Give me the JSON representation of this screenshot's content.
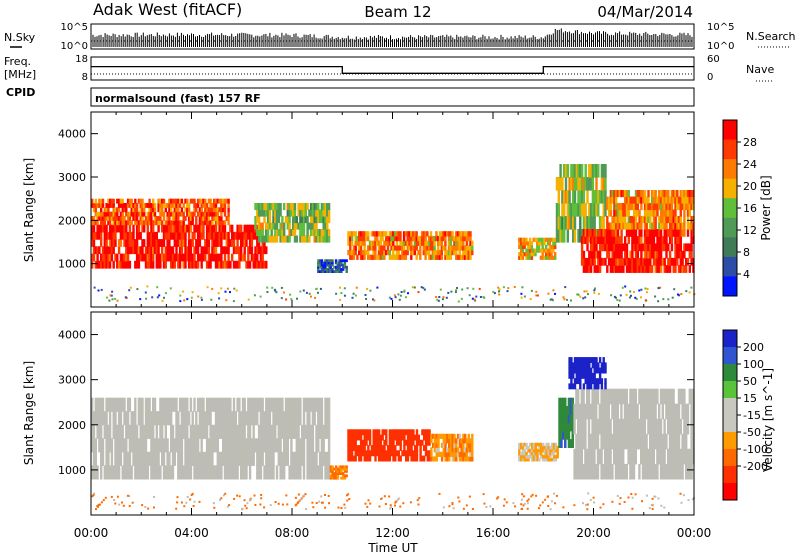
{
  "header": {
    "title": "Adak West (fitACF)",
    "beam": "Beam 12",
    "date": "04/Mar/2014"
  },
  "top_panels": {
    "nsky_label": "N.Sky",
    "nsearch_label": "N.Search",
    "freq_label_1": "Freq.",
    "freq_label_2": "[MHz]",
    "nave_label": "Nave",
    "cpid_label": "CPID",
    "cpid_text": "normalsound (fast) 157 RF",
    "noise_ticks": [
      "10^5",
      "10^0"
    ],
    "freq_ticks": [
      "18",
      "8"
    ],
    "nave_ticks": [
      "60",
      "0"
    ]
  },
  "colors": {
    "power": [
      "#0015ff",
      "#2c4ca8",
      "#3f7b57",
      "#4e9a56",
      "#5fbf3b",
      "#f5b000",
      "#ff7a00",
      "#ff3a00",
      "#ff0000"
    ],
    "velocity": [
      "#1a22c8",
      "#2f55d0",
      "#2e8a3a",
      "#58c43a",
      "#c8c8c0",
      "#c8c8c0",
      "#ff9a00",
      "#ff6a00",
      "#ff3000",
      "#ff0000"
    ],
    "ground": "#bdbdb5"
  },
  "chart_data": [
    {
      "type": "line",
      "title": "N.Sky / N.Search",
      "ylabel": "N.Sky",
      "yscale": "log",
      "ylim": [
        1,
        100000
      ],
      "yticks": [
        "10^0",
        "10^5"
      ],
      "series": [
        {
          "name": "N.Sky",
          "x": [
            "00:00",
            "04:00",
            "08:00",
            "10:00",
            "12:00",
            "16:00",
            "18:00",
            "18:30",
            "20:00",
            "24:00"
          ],
          "y": [
            1000,
            1200,
            900,
            300,
            300,
            300,
            300,
            20000,
            3000,
            1000
          ]
        }
      ]
    },
    {
      "type": "line",
      "title": "Freq. [MHz] / Nave",
      "ylabel": "Freq. [MHz]",
      "ylim": [
        8,
        18
      ],
      "x": [
        "00:00",
        "10:00",
        "10:00",
        "18:00",
        "18:00",
        "24:00"
      ],
      "series": [
        {
          "name": "Freq.",
          "values": [
            14,
            14,
            10.5,
            10.5,
            14,
            14
          ]
        }
      ]
    },
    {
      "type": "heatmap",
      "title": "Power",
      "xlabel": "Time UT",
      "ylabel": "Slant Range [km]",
      "xlim": [
        "00:00",
        "24:00"
      ],
      "xticks": [
        "00:00",
        "04:00",
        "08:00",
        "12:00",
        "16:00",
        "20:00",
        "00:00"
      ],
      "ylim": [
        0,
        4500
      ],
      "yticks": [
        1000,
        2000,
        3000,
        4000
      ],
      "colorbar_label": "Power [dB]",
      "colorbar_ticks": [
        4,
        8,
        12,
        16,
        20,
        24,
        28
      ],
      "bands": [
        {
          "t0": 0.0,
          "t1": 7.0,
          "r0": 900,
          "r1": 1900,
          "v": 28
        },
        {
          "t0": 0.0,
          "t1": 5.5,
          "r0": 1900,
          "r1": 2500,
          "v": 24
        },
        {
          "t0": 6.5,
          "t1": 9.5,
          "r0": 1500,
          "r1": 2400,
          "v": 16
        },
        {
          "t0": 9.0,
          "t1": 10.2,
          "r0": 800,
          "r1": 1100,
          "v": 8
        },
        {
          "t0": 10.2,
          "t1": 15.2,
          "r0": 1100,
          "r1": 1750,
          "v": 22
        },
        {
          "t0": 17.0,
          "t1": 18.5,
          "r0": 1100,
          "r1": 1600,
          "v": 20
        },
        {
          "t0": 18.5,
          "t1": 20.5,
          "r0": 1500,
          "r1": 3300,
          "v": 16
        },
        {
          "t0": 19.5,
          "t1": 24.0,
          "r0": 800,
          "r1": 1800,
          "v": 28
        },
        {
          "t0": 20.5,
          "t1": 24.0,
          "r0": 1800,
          "r1": 2700,
          "v": 22
        }
      ]
    },
    {
      "type": "heatmap",
      "title": "Velocity",
      "xlabel": "Time UT",
      "ylabel": "Slant Range [km]",
      "xlim": [
        "00:00",
        "24:00"
      ],
      "xticks": [
        "00:00",
        "04:00",
        "08:00",
        "12:00",
        "16:00",
        "20:00",
        "00:00"
      ],
      "ylim": [
        0,
        4500
      ],
      "yticks": [
        1000,
        2000,
        3000,
        4000
      ],
      "colorbar_label": "Velocity [m s^-1]",
      "colorbar_ticks": [
        200,
        100,
        50,
        15,
        -15,
        -50,
        -100,
        -200
      ],
      "bands": [
        {
          "t0": 0.0,
          "t1": 9.5,
          "r0": 800,
          "r1": 2600,
          "v": "ground"
        },
        {
          "t0": 9.5,
          "t1": 10.2,
          "r0": 800,
          "r1": 1100,
          "v": -60
        },
        {
          "t0": 10.2,
          "t1": 13.5,
          "r0": 1200,
          "r1": 1900,
          "v": -160
        },
        {
          "t0": 13.5,
          "t1": 15.2,
          "r0": 1200,
          "r1": 1800,
          "v": -40
        },
        {
          "t0": 17.0,
          "t1": 18.6,
          "r0": 1200,
          "r1": 1600,
          "v": -20
        },
        {
          "t0": 18.6,
          "t1": 19.2,
          "r0": 1500,
          "r1": 2600,
          "v": 60
        },
        {
          "t0": 19.2,
          "t1": 24.0,
          "r0": 800,
          "r1": 2800,
          "v": "ground"
        },
        {
          "t0": 19.0,
          "t1": 20.5,
          "r0": 2800,
          "r1": 3500,
          "v": 180
        }
      ]
    }
  ]
}
